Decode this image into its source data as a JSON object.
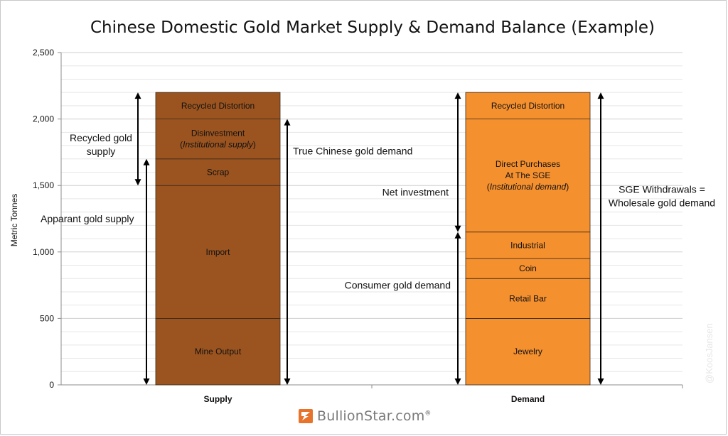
{
  "chart_data": {
    "type": "bar",
    "subtype": "stacked",
    "title": "Chinese Domestic Gold Market Supply & Demand Balance (Example)",
    "ylabel": "Metric Tonnes",
    "xlabel": "",
    "ylim": [
      0,
      2500
    ],
    "y_ticks": [
      0,
      500,
      1000,
      1500,
      2000,
      2500
    ],
    "y_tick_labels": [
      "0",
      "500",
      "1,000",
      "1,500",
      "2,000",
      "2,500"
    ],
    "grid": true,
    "categories": [
      {
        "name": "Supply",
        "color": "#9b5420",
        "segments": [
          {
            "label": "Mine Output",
            "from": 0,
            "to": 500
          },
          {
            "label": "Import",
            "from": 500,
            "to": 1500
          },
          {
            "label": "Scrap",
            "from": 1500,
            "to": 1700
          },
          {
            "label": "Disinvestment",
            "label2": "Institutional supply",
            "from": 1700,
            "to": 2000
          },
          {
            "label": "Recycled Distortion",
            "from": 2000,
            "to": 2200
          }
        ]
      },
      {
        "name": "Demand",
        "color": "#f5902f",
        "segments": [
          {
            "label": "Jewelry",
            "from": 0,
            "to": 500
          },
          {
            "label": "Retail Bar",
            "from": 500,
            "to": 800
          },
          {
            "label": "Coin",
            "from": 800,
            "to": 950
          },
          {
            "label": "Industrial",
            "from": 950,
            "to": 1150
          },
          {
            "label": "Direct Purchases",
            "label_line2": "At The SGE",
            "label2": "Institutional demand",
            "from": 1150,
            "to": 2000
          },
          {
            "label": "Recycled Distortion",
            "from": 2000,
            "to": 2200
          }
        ]
      }
    ],
    "annotations": [
      {
        "text": [
          "Recycled gold",
          "supply"
        ],
        "from": 1500,
        "to": 2200,
        "anchor": "supply-left-outer"
      },
      {
        "text": [
          "Apparant gold supply"
        ],
        "from": 0,
        "to": 1700,
        "anchor": "supply-left-inner"
      },
      {
        "text": [
          "True Chinese gold demand"
        ],
        "from": 0,
        "to": 2000,
        "anchor": "supply-right"
      },
      {
        "text": [
          "Net investment"
        ],
        "from": 1150,
        "to": 2200,
        "anchor": "demand-left-upper"
      },
      {
        "text": [
          "Consumer gold demand"
        ],
        "from": 0,
        "to": 1150,
        "anchor": "demand-left-lower"
      },
      {
        "text": [
          "SGE Withdrawals =",
          "Wholesale gold demand"
        ],
        "from": 0,
        "to": 2200,
        "anchor": "demand-right"
      }
    ]
  },
  "branding": {
    "logo_text": "BullionStar.com",
    "logo_reg": "®",
    "watermark": "@KoosJansen"
  },
  "colors": {
    "supply": "#9b5420",
    "demand": "#f5902f",
    "grid": "#d9d9d9",
    "logo_accent": "#e8732a"
  }
}
